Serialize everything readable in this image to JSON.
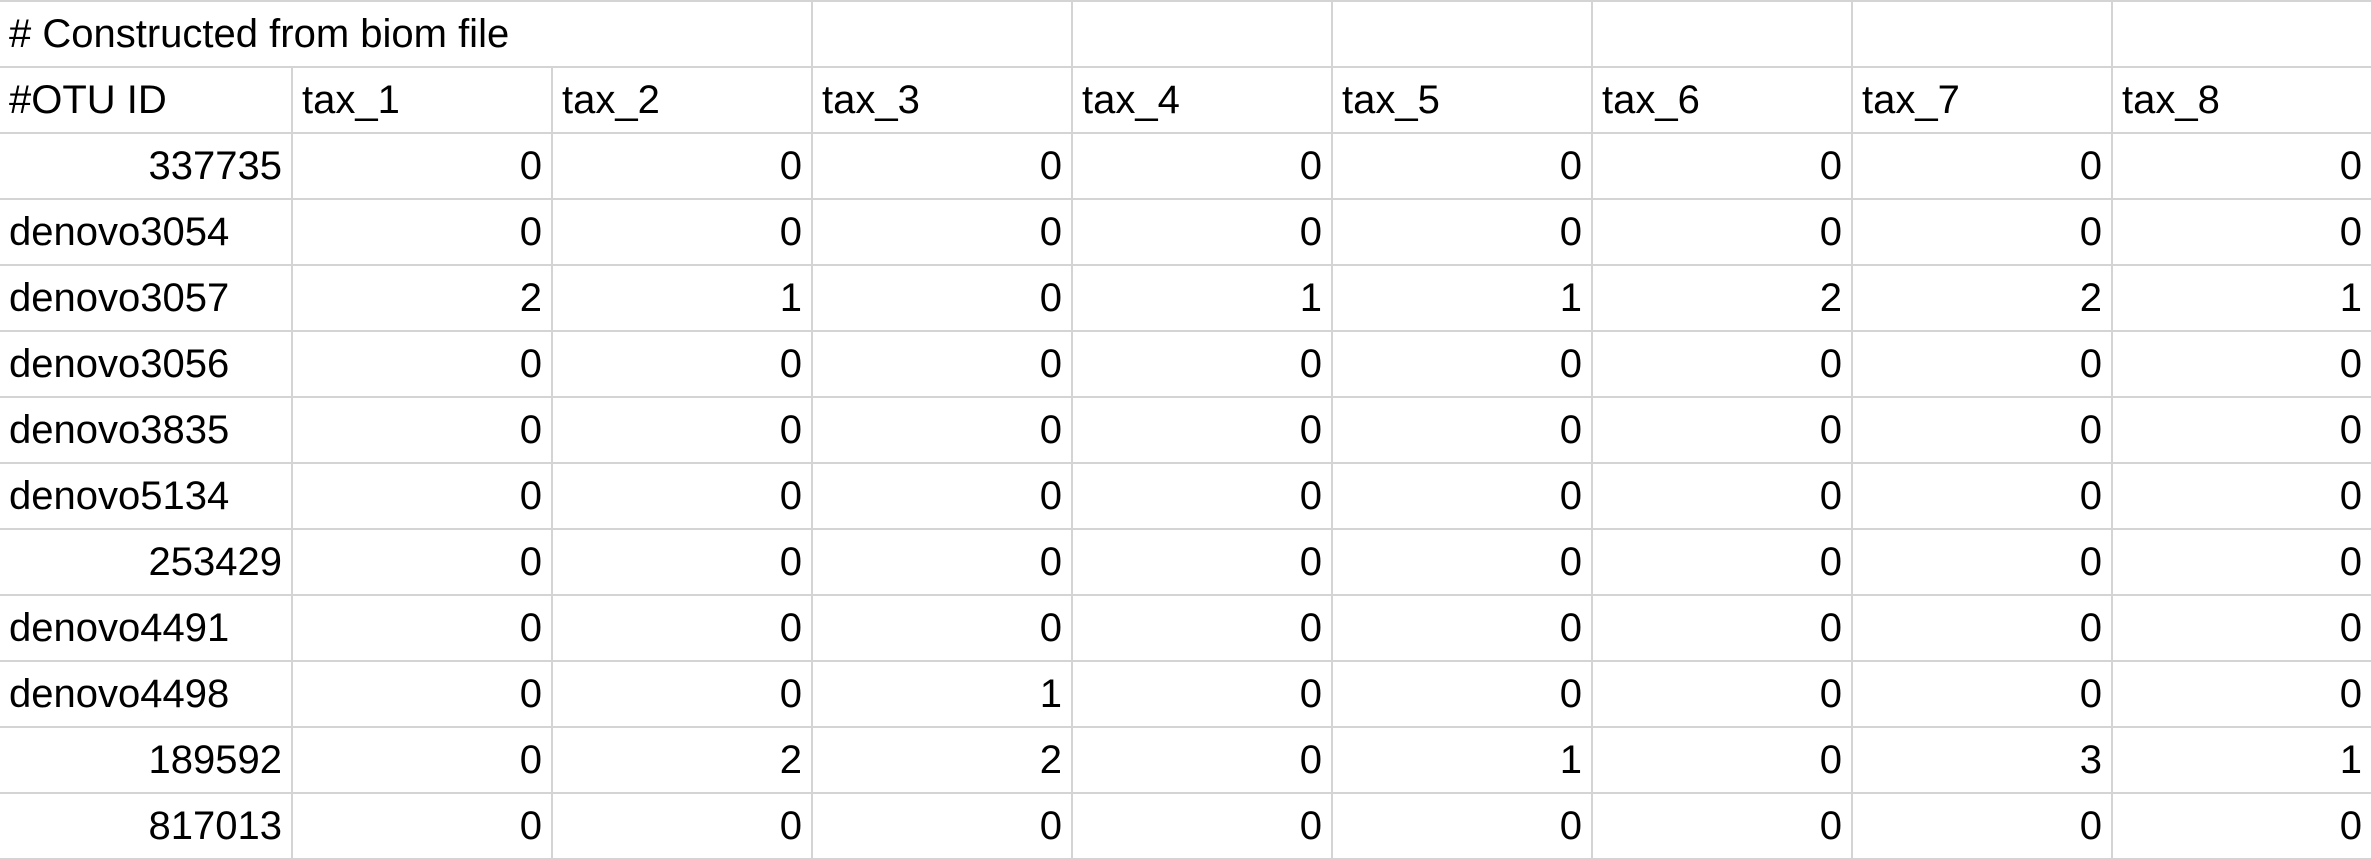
{
  "sheet": {
    "title_cell": "# Constructed from biom file",
    "header": [
      "#OTU ID",
      "tax_1",
      "tax_2",
      "tax_3",
      "tax_4",
      "tax_5",
      "tax_6",
      "tax_7",
      "tax_8"
    ],
    "rows": [
      {
        "id": "337735",
        "id_numeric": true,
        "values": [
          "0",
          "0",
          "0",
          "0",
          "0",
          "0",
          "0",
          "0"
        ]
      },
      {
        "id": "denovo3054",
        "id_numeric": false,
        "values": [
          "0",
          "0",
          "0",
          "0",
          "0",
          "0",
          "0",
          "0"
        ]
      },
      {
        "id": "denovo3057",
        "id_numeric": false,
        "values": [
          "2",
          "1",
          "0",
          "1",
          "1",
          "2",
          "2",
          "1"
        ]
      },
      {
        "id": "denovo3056",
        "id_numeric": false,
        "values": [
          "0",
          "0",
          "0",
          "0",
          "0",
          "0",
          "0",
          "0"
        ]
      },
      {
        "id": "denovo3835",
        "id_numeric": false,
        "values": [
          "0",
          "0",
          "0",
          "0",
          "0",
          "0",
          "0",
          "0"
        ]
      },
      {
        "id": "denovo5134",
        "id_numeric": false,
        "values": [
          "0",
          "0",
          "0",
          "0",
          "0",
          "0",
          "0",
          "0"
        ]
      },
      {
        "id": "253429",
        "id_numeric": true,
        "values": [
          "0",
          "0",
          "0",
          "0",
          "0",
          "0",
          "0",
          "0"
        ]
      },
      {
        "id": "denovo4491",
        "id_numeric": false,
        "values": [
          "0",
          "0",
          "0",
          "0",
          "0",
          "0",
          "0",
          "0"
        ]
      },
      {
        "id": "denovo4498",
        "id_numeric": false,
        "values": [
          "0",
          "0",
          "1",
          "0",
          "0",
          "0",
          "0",
          "0"
        ]
      },
      {
        "id": "189592",
        "id_numeric": true,
        "values": [
          "0",
          "2",
          "2",
          "0",
          "1",
          "0",
          "3",
          "1"
        ]
      },
      {
        "id": "817013",
        "id_numeric": true,
        "values": [
          "0",
          "0",
          "0",
          "0",
          "0",
          "0",
          "0",
          "0"
        ]
      }
    ]
  },
  "colors": {
    "gridline": "#d4d4d4",
    "text": "#000000",
    "background": "#ffffff"
  }
}
